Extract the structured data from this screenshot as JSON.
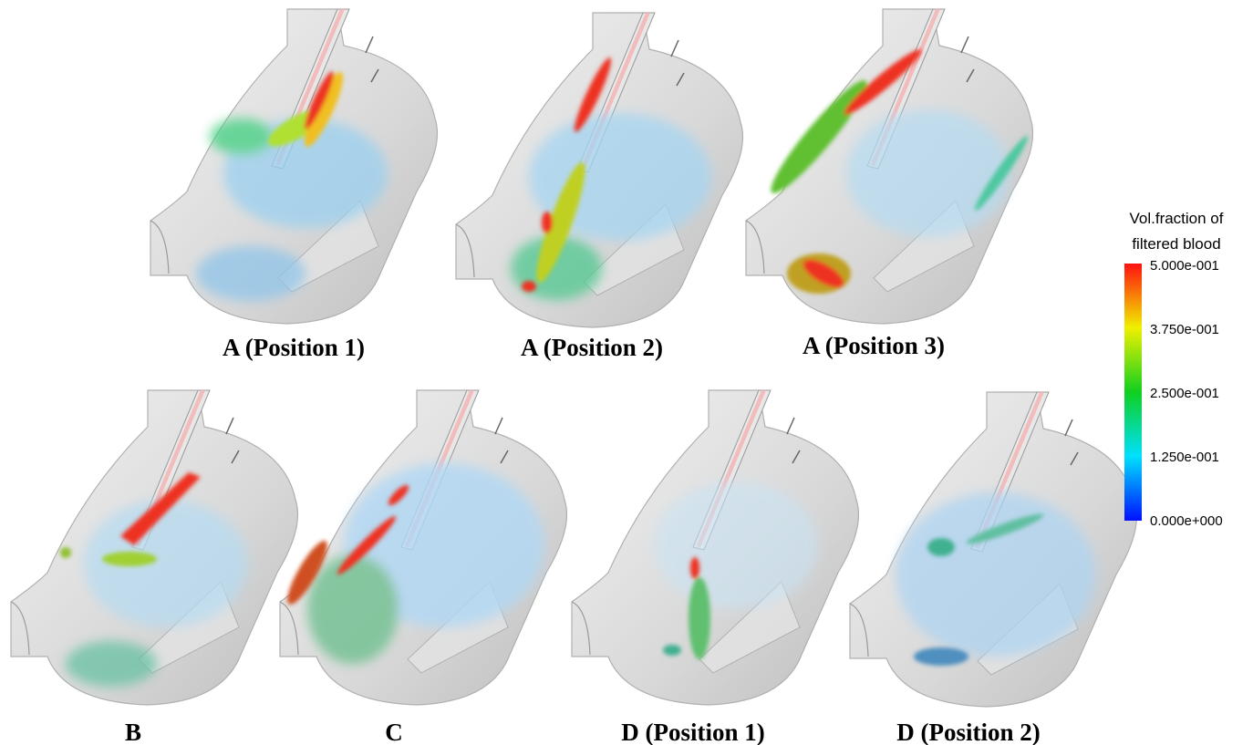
{
  "panels": [
    {
      "label": "A (Position 1)"
    },
    {
      "label": "A (Position 2)"
    },
    {
      "label": "A (Position 3)"
    },
    {
      "label": "B"
    },
    {
      "label": "C"
    },
    {
      "label": "D (Position 1)"
    },
    {
      "label": "D (Position 2)"
    }
  ],
  "colorbar": {
    "title": [
      "Vol.fraction of",
      "filtered blood"
    ],
    "ticks": [
      "5.000e-001",
      "3.750e-001",
      "2.500e-001",
      "1.250e-001",
      "0.000e+000"
    ]
  }
}
